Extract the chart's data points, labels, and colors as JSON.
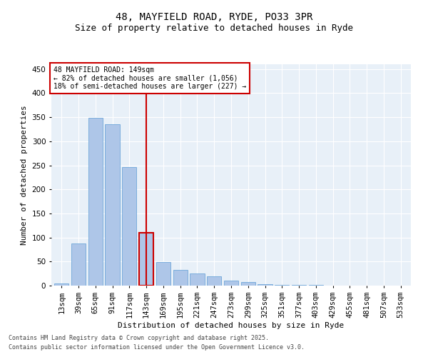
{
  "title1": "48, MAYFIELD ROAD, RYDE, PO33 3PR",
  "title2": "Size of property relative to detached houses in Ryde",
  "xlabel": "Distribution of detached houses by size in Ryde",
  "ylabel": "Number of detached properties",
  "bins": [
    "13sqm",
    "39sqm",
    "65sqm",
    "91sqm",
    "117sqm",
    "143sqm",
    "169sqm",
    "195sqm",
    "221sqm",
    "247sqm",
    "273sqm",
    "299sqm",
    "325sqm",
    "351sqm",
    "377sqm",
    "403sqm",
    "429sqm",
    "455sqm",
    "481sqm",
    "507sqm",
    "533sqm"
  ],
  "values": [
    5,
    88,
    348,
    335,
    246,
    110,
    49,
    32,
    25,
    19,
    10,
    8,
    3,
    2,
    1,
    1,
    0,
    0,
    0,
    0,
    0
  ],
  "bar_color": "#aec6e8",
  "bar_edge_color": "#5b9bd5",
  "highlight_bar_index": 5,
  "highlight_bar_edge_color": "#cc0000",
  "vline_color": "#cc0000",
  "annotation_text": "48 MAYFIELD ROAD: 149sqm\n← 82% of detached houses are smaller (1,056)\n18% of semi-detached houses are larger (227) →",
  "annotation_box_edge_color": "#cc0000",
  "ylim": [
    0,
    460
  ],
  "yticks": [
    0,
    50,
    100,
    150,
    200,
    250,
    300,
    350,
    400,
    450
  ],
  "bg_color": "#e8f0f8",
  "footer1": "Contains HM Land Registry data © Crown copyright and database right 2025.",
  "footer2": "Contains public sector information licensed under the Open Government Licence v3.0.",
  "title1_fontsize": 10,
  "title2_fontsize": 9,
  "axis_label_fontsize": 8,
  "tick_fontsize": 7.5,
  "annotation_fontsize": 7,
  "footer_fontsize": 6
}
